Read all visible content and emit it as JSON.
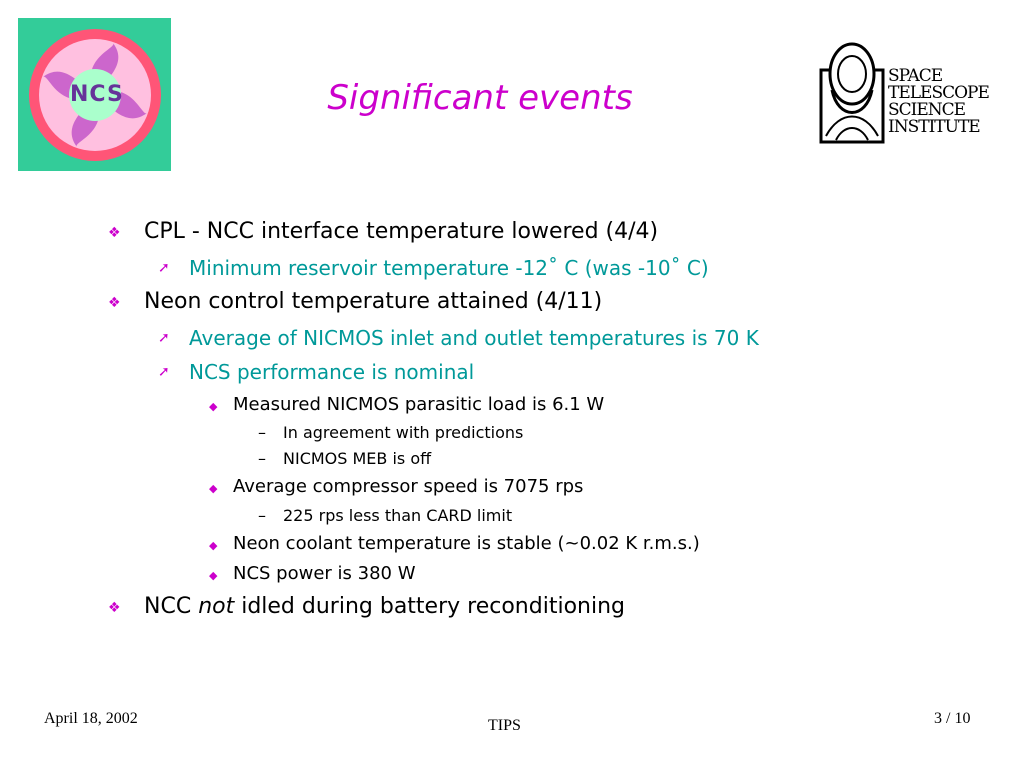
{
  "slide": {
    "title": "Significant events",
    "logo_left": {
      "text": "NCS",
      "colors": {
        "background": "#33cc99",
        "ring": "#ff3366",
        "accent": "#cc00cc"
      }
    },
    "logo_right": {
      "lines": [
        "SPACE",
        "TELESCOPE",
        "SCIENCE",
        "INSTITUTE"
      ]
    },
    "bullets": [
      {
        "level": 1,
        "text_parts": [
          "CPL - NCC interface temperature lowered (4/4)"
        ]
      },
      {
        "level": 2,
        "text_parts": [
          "Minimum reservoir temperature -12˚ C (was -10˚ C)"
        ]
      },
      {
        "level": 1,
        "text_parts": [
          "Neon control temperature attained (4/11)"
        ]
      },
      {
        "level": 2,
        "text_parts": [
          "Average of NICMOS inlet and outlet temperatures is 70 K"
        ]
      },
      {
        "level": 2,
        "text_parts": [
          "NCS performance is nominal"
        ]
      },
      {
        "level": 3,
        "text_parts": [
          "Measured NICMOS parasitic load  is 6.1 W"
        ]
      },
      {
        "level": 4,
        "text_parts": [
          "In agreement with predictions"
        ]
      },
      {
        "level": 4,
        "text_parts": [
          "NICMOS MEB is off"
        ]
      },
      {
        "level": 3,
        "text_parts": [
          "Average compressor speed is 7075 rps"
        ]
      },
      {
        "level": 4,
        "text_parts": [
          "225 rps less than CARD limit"
        ]
      },
      {
        "level": 3,
        "text_parts": [
          "Neon coolant temperature is stable (~0.02 K r.m.s.)"
        ]
      },
      {
        "level": 3,
        "text_parts": [
          "NCS power is 380 W"
        ]
      },
      {
        "level": 1,
        "text_parts": [
          "NCC ",
          "not",
          " idled during battery reconditioning"
        ]
      }
    ],
    "markers": {
      "1": "❖",
      "2": "➚",
      "3": "◆",
      "4": "–"
    },
    "footer": {
      "date": "April 18, 2002",
      "center": "TIPS",
      "page": "3 / 10"
    },
    "colors": {
      "title": "#cc00cc",
      "level2_text": "#009999",
      "marker": "#cc00cc"
    }
  }
}
